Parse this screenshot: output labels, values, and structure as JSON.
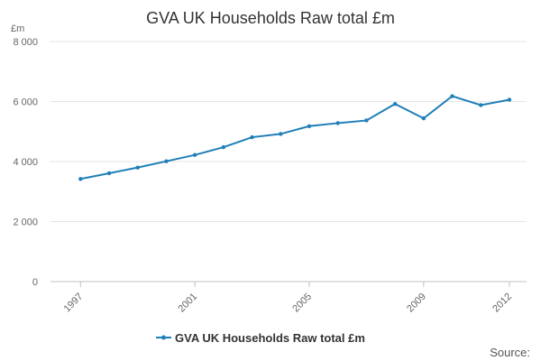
{
  "chart_data": {
    "type": "line",
    "title": "GVA UK Households Raw total £m",
    "y_unit": "£m",
    "xlabel": "",
    "ylabel": "",
    "x": [
      1997,
      1998,
      1999,
      2000,
      2001,
      2002,
      2003,
      2004,
      2005,
      2006,
      2007,
      2008,
      2009,
      2010,
      2011,
      2012
    ],
    "x_tick_labels": [
      "1997",
      "2001",
      "2005",
      "2009",
      "2012"
    ],
    "x_tick_values": [
      1997,
      2001,
      2005,
      2009,
      2012
    ],
    "y_ticks": [
      0,
      2000,
      4000,
      6000,
      8000
    ],
    "y_tick_labels": [
      "0",
      "2 000",
      "4 000",
      "6 000",
      "8 000"
    ],
    "ylim": [
      0,
      8000
    ],
    "grid": true,
    "legend_position": "bottom-center",
    "series": [
      {
        "name": "GVA UK Households Raw total £m",
        "color": "#1f7fb8",
        "values": [
          3420,
          3610,
          3800,
          4010,
          4220,
          4480,
          4810,
          4920,
          5180,
          5280,
          5370,
          5920,
          5440,
          6180,
          5880,
          6060
        ]
      }
    ]
  },
  "footer": {
    "source_label": "Source:"
  }
}
